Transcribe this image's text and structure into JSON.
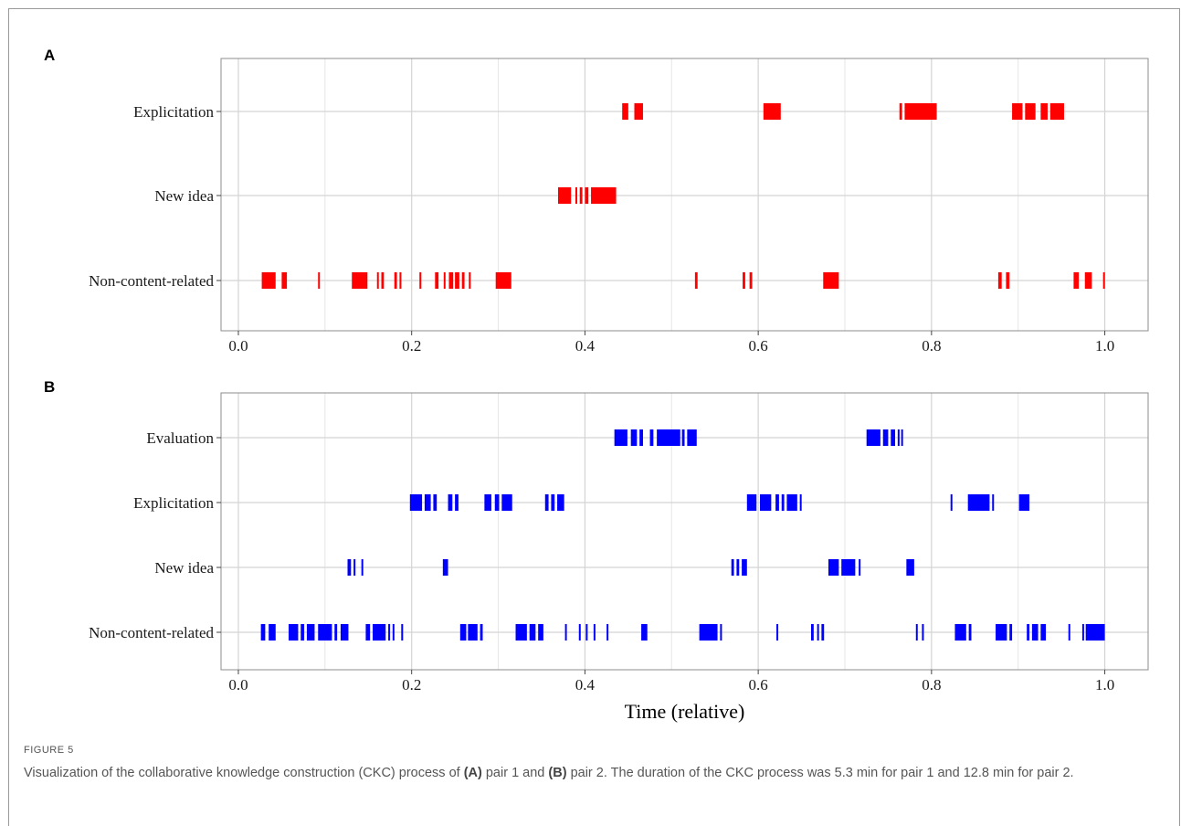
{
  "chart_data": [
    {
      "type": "event-timeline",
      "panel": "A",
      "xlim": [
        -0.02,
        1.05
      ],
      "xticks": [
        "0.0",
        "0.2",
        "0.4",
        "0.6",
        "0.8",
        "1.0"
      ],
      "xlabel": "",
      "grid": true,
      "color": "#ff0000",
      "categories": [
        "Explicitation",
        "New idea",
        "Non-content-related"
      ],
      "events": {
        "Explicitation": [
          [
            0.443,
            0.45
          ],
          [
            0.457,
            0.467
          ],
          [
            0.606,
            0.626
          ],
          [
            0.763,
            0.766
          ],
          [
            0.769,
            0.806
          ],
          [
            0.893,
            0.905
          ],
          [
            0.908,
            0.92
          ],
          [
            0.926,
            0.934
          ],
          [
            0.937,
            0.953
          ]
        ],
        "New idea": [
          [
            0.369,
            0.384
          ],
          [
            0.389,
            0.391
          ],
          [
            0.394,
            0.397
          ],
          [
            0.4,
            0.404
          ],
          [
            0.407,
            0.436
          ]
        ],
        "Non-content-related": [
          [
            0.027,
            0.043
          ],
          [
            0.05,
            0.056
          ],
          [
            0.092,
            0.094
          ],
          [
            0.131,
            0.149
          ],
          [
            0.16,
            0.162
          ],
          [
            0.165,
            0.168
          ],
          [
            0.18,
            0.183
          ],
          [
            0.186,
            0.188
          ],
          [
            0.209,
            0.211
          ],
          [
            0.227,
            0.231
          ],
          [
            0.237,
            0.239
          ],
          [
            0.243,
            0.248
          ],
          [
            0.25,
            0.255
          ],
          [
            0.258,
            0.261
          ],
          [
            0.266,
            0.268
          ],
          [
            0.297,
            0.315
          ],
          [
            0.527,
            0.53
          ],
          [
            0.582,
            0.585
          ],
          [
            0.59,
            0.593
          ],
          [
            0.675,
            0.693
          ],
          [
            0.877,
            0.881
          ],
          [
            0.886,
            0.89
          ],
          [
            0.964,
            0.97
          ],
          [
            0.977,
            0.985
          ],
          [
            0.998,
            1.0
          ]
        ]
      }
    },
    {
      "type": "event-timeline",
      "panel": "B",
      "xlim": [
        -0.02,
        1.05
      ],
      "xticks": [
        "0.0",
        "0.2",
        "0.4",
        "0.6",
        "0.8",
        "1.0"
      ],
      "xlabel": "Time (relative)",
      "grid": true,
      "color": "#0000ff",
      "categories": [
        "Evaluation",
        "Explicitation",
        "New idea",
        "Non-content-related"
      ],
      "events": {
        "Evaluation": [
          [
            0.434,
            0.449
          ],
          [
            0.453,
            0.46
          ],
          [
            0.463,
            0.467
          ],
          [
            0.475,
            0.479
          ],
          [
            0.483,
            0.51
          ],
          [
            0.512,
            0.515
          ],
          [
            0.518,
            0.529
          ],
          [
            0.725,
            0.741
          ],
          [
            0.744,
            0.75
          ],
          [
            0.753,
            0.758
          ],
          [
            0.761,
            0.763
          ],
          [
            0.765,
            0.767
          ]
        ],
        "Explicitation": [
          [
            0.198,
            0.212
          ],
          [
            0.215,
            0.222
          ],
          [
            0.225,
            0.229
          ],
          [
            0.242,
            0.247
          ],
          [
            0.25,
            0.254
          ],
          [
            0.284,
            0.292
          ],
          [
            0.296,
            0.301
          ],
          [
            0.304,
            0.316
          ],
          [
            0.354,
            0.358
          ],
          [
            0.361,
            0.365
          ],
          [
            0.368,
            0.376
          ],
          [
            0.587,
            0.598
          ],
          [
            0.602,
            0.615
          ],
          [
            0.62,
            0.624
          ],
          [
            0.627,
            0.63
          ],
          [
            0.633,
            0.645
          ],
          [
            0.648,
            0.65
          ],
          [
            0.822,
            0.824
          ],
          [
            0.842,
            0.867
          ],
          [
            0.87,
            0.872
          ],
          [
            0.901,
            0.913
          ]
        ],
        "New idea": [
          [
            0.126,
            0.13
          ],
          [
            0.133,
            0.135
          ],
          [
            0.142,
            0.144
          ],
          [
            0.236,
            0.242
          ],
          [
            0.569,
            0.572
          ],
          [
            0.575,
            0.578
          ],
          [
            0.581,
            0.587
          ],
          [
            0.681,
            0.693
          ],
          [
            0.696,
            0.712
          ],
          [
            0.716,
            0.718
          ],
          [
            0.771,
            0.78
          ]
        ],
        "Non-content-related": [
          [
            0.026,
            0.031
          ],
          [
            0.035,
            0.043
          ],
          [
            0.058,
            0.069
          ],
          [
            0.072,
            0.076
          ],
          [
            0.079,
            0.088
          ],
          [
            0.092,
            0.108
          ],
          [
            0.111,
            0.114
          ],
          [
            0.118,
            0.127
          ],
          [
            0.147,
            0.152
          ],
          [
            0.155,
            0.17
          ],
          [
            0.173,
            0.175
          ],
          [
            0.178,
            0.18
          ],
          [
            0.188,
            0.19
          ],
          [
            0.256,
            0.263
          ],
          [
            0.265,
            0.276
          ],
          [
            0.279,
            0.282
          ],
          [
            0.32,
            0.333
          ],
          [
            0.336,
            0.343
          ],
          [
            0.346,
            0.352
          ],
          [
            0.377,
            0.379
          ],
          [
            0.393,
            0.395
          ],
          [
            0.401,
            0.403
          ],
          [
            0.41,
            0.412
          ],
          [
            0.425,
            0.427
          ],
          [
            0.465,
            0.472
          ],
          [
            0.532,
            0.553
          ],
          [
            0.556,
            0.558
          ],
          [
            0.621,
            0.623
          ],
          [
            0.661,
            0.664
          ],
          [
            0.668,
            0.67
          ],
          [
            0.673,
            0.676
          ],
          [
            0.782,
            0.784
          ],
          [
            0.789,
            0.791
          ],
          [
            0.827,
            0.84
          ],
          [
            0.843,
            0.846
          ],
          [
            0.874,
            0.887
          ],
          [
            0.89,
            0.893
          ],
          [
            0.91,
            0.913
          ],
          [
            0.916,
            0.923
          ],
          [
            0.926,
            0.932
          ],
          [
            0.958,
            0.96
          ],
          [
            0.974,
            0.976
          ],
          [
            0.978,
            1.0
          ]
        ]
      }
    }
  ],
  "panel_labels": {
    "a": "A",
    "b": "B"
  },
  "caption": {
    "title": "FIGURE 5",
    "text_1": "Visualization of the collaborative knowledge construction (CKC) process of ",
    "ref_a": "(A)",
    "text_2": " pair 1 and ",
    "ref_b": "(B)",
    "text_3": " pair 2. The duration of the CKC process was 5.3 min for pair 1 and 12.8 min for pair 2."
  }
}
